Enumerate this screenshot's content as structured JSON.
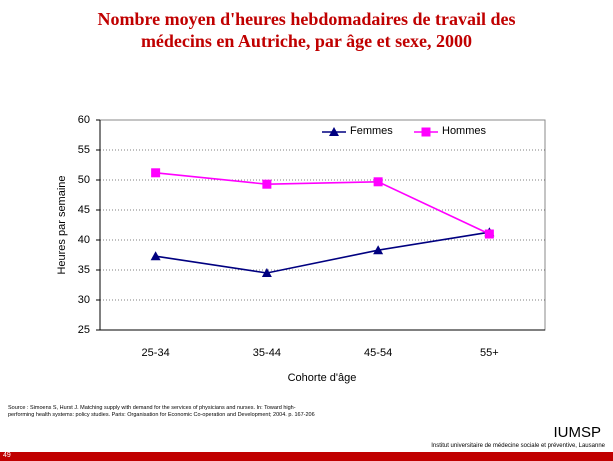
{
  "chart_data": {
    "type": "line",
    "title": "Nombre moyen d'heures hebdomadaires de travail des médecins en Autriche, par âge et sexe, 2000",
    "categories": [
      "25-34",
      "35-44",
      "45-54",
      "55+"
    ],
    "series": [
      {
        "name": "Femmes",
        "color": "#000080",
        "marker": "triangle",
        "values": [
          37.3,
          34.5,
          38.3,
          41.3
        ]
      },
      {
        "name": "Hommes",
        "color": "#ff00ff",
        "marker": "square",
        "values": [
          51.2,
          49.3,
          49.7,
          41.0
        ]
      }
    ],
    "ylim": [
      25,
      60
    ],
    "yticks": [
      25,
      30,
      35,
      40,
      45,
      50,
      55,
      60
    ],
    "ylabel": "Heures par semaine",
    "xlabel": "Cohorte d'âge",
    "grid": true,
    "legend": "top"
  },
  "footer": {
    "source": "Source : Simoens S, Hurst J. Matching supply with demand for the services of physicians and nurses. In: Toward high-performing health systems: policy studies. Paris: Organisation for Economic Co-operation and Development; 2004. p. 167-206",
    "org": "IUMSP",
    "institute": "Institut universitaire de médecine sociale et préventive, Lausanne",
    "slide_number": "49"
  }
}
